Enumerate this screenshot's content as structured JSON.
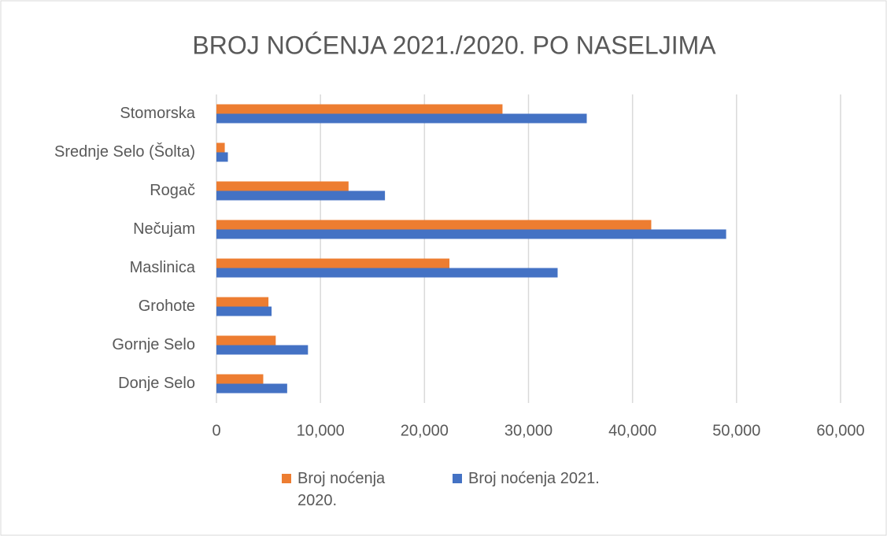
{
  "chart_data": {
    "type": "hbar",
    "title": "BROJ NOĆENJA 2021./2020. PO NASELJIMA",
    "categories": [
      "Stomorska",
      "Srednje Selo (Šolta)",
      "Rogač",
      "Nečujam",
      "Maslinica",
      "Grohote",
      "Gornje Selo",
      "Donje Selo"
    ],
    "series": [
      {
        "name": "Broj noćenja 2020.",
        "color": "#ed7d31",
        "values": [
          27500,
          800,
          12700,
          41800,
          22400,
          5000,
          5700,
          4500
        ]
      },
      {
        "name": "Broj noćenja 2021.",
        "color": "#4472c4",
        "values": [
          35600,
          1100,
          16200,
          49000,
          32800,
          5300,
          8800,
          6800
        ]
      }
    ],
    "xlim": [
      0,
      60000
    ],
    "xticks": [
      0,
      {
        "value": 10000,
        "label": "10,000"
      },
      {
        "value": 20000,
        "label": "20,000"
      },
      {
        "value": 30000,
        "label": "30,000"
      },
      {
        "value": 40000,
        "label": "40,000"
      },
      {
        "value": 50000,
        "label": "50,000"
      },
      {
        "value": 60000,
        "label": "60,000"
      }
    ],
    "grid": true,
    "legend": "bottom"
  }
}
